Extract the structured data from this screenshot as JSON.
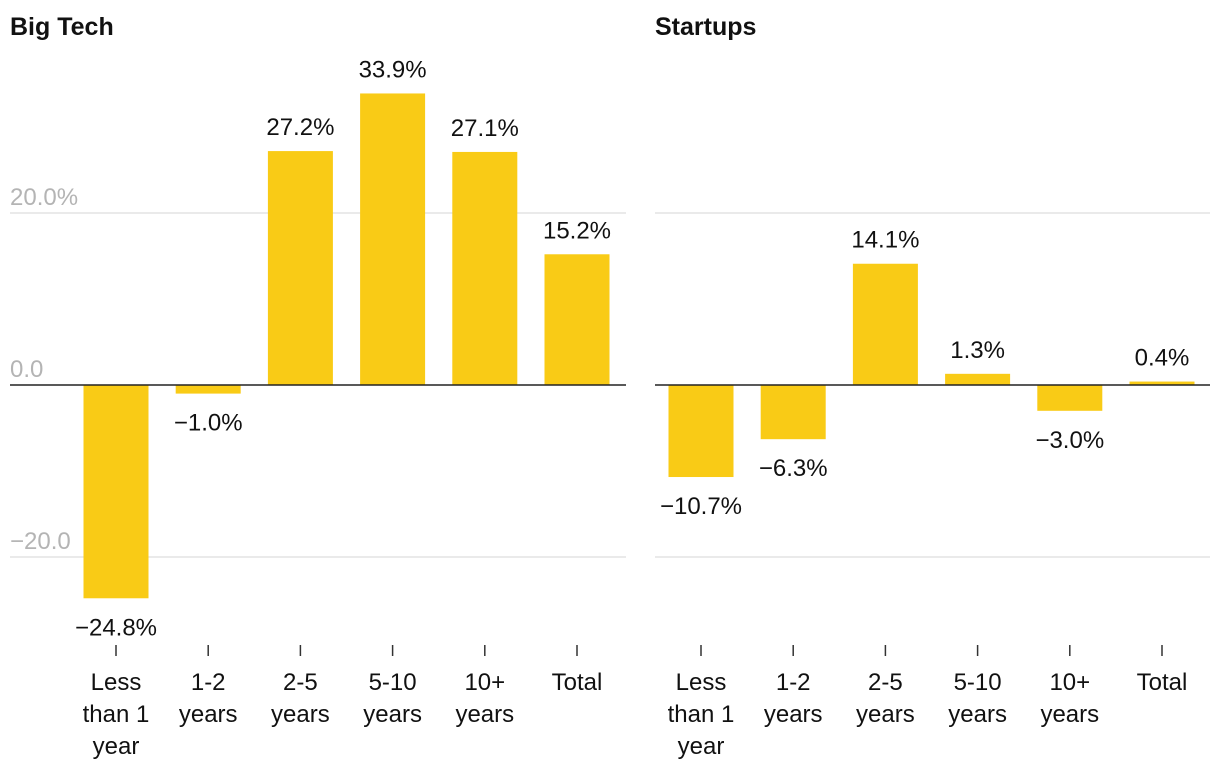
{
  "chart_data": [
    {
      "type": "bar",
      "title": "Big Tech",
      "xlabel": "",
      "ylabel": "",
      "categories": [
        [
          "Less",
          "than 1",
          "year"
        ],
        [
          "1-2",
          "years"
        ],
        [
          "2-5",
          "years"
        ],
        [
          "5-10",
          "years"
        ],
        [
          "10+",
          "years"
        ],
        [
          "Total"
        ]
      ],
      "values": [
        -24.8,
        -1.0,
        27.2,
        33.9,
        27.1,
        15.2
      ],
      "value_labels": [
        "−24.8%",
        "−1.0%",
        "27.2%",
        "33.9%",
        "27.1%",
        "15.2%"
      ],
      "yticks": [
        20,
        0,
        -20
      ],
      "ytick_labels": [
        "20.0%",
        "0.0",
        "−20.0"
      ],
      "ylim": [
        -30,
        40
      ],
      "grid": true,
      "legend": "none",
      "bar_color": "#f9cb16"
    },
    {
      "type": "bar",
      "title": "Startups",
      "xlabel": "",
      "ylabel": "",
      "categories": [
        [
          "Less",
          "than 1",
          "year"
        ],
        [
          "1-2",
          "years"
        ],
        [
          "2-5",
          "years"
        ],
        [
          "5-10",
          "years"
        ],
        [
          "10+",
          "years"
        ],
        [
          "Total"
        ]
      ],
      "values": [
        -10.7,
        -6.3,
        14.1,
        1.3,
        -3.0,
        0.4
      ],
      "value_labels": [
        "−10.7%",
        "−6.3%",
        "14.1%",
        "1.3%",
        "−3.0%",
        "0.4%"
      ],
      "yticks": [
        20,
        0,
        -20
      ],
      "ytick_labels": [],
      "ylim": [
        -30,
        40
      ],
      "grid": true,
      "legend": "none",
      "bar_color": "#f9cb16"
    }
  ]
}
